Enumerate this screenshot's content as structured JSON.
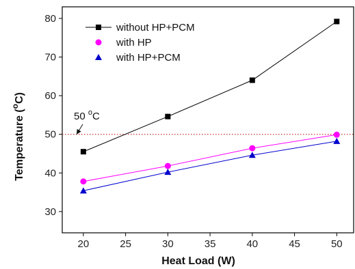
{
  "chart_data": {
    "type": "line",
    "xlabel": "Heat Load (W)",
    "ylabel_main": "Temperature (",
    "ylabel_sup": "o",
    "ylabel_end": "C)",
    "xlim": [
      17.5,
      52
    ],
    "ylim": [
      24.5,
      83
    ],
    "xticks": [
      20,
      25,
      30,
      35,
      40,
      45,
      50
    ],
    "yticks": [
      30,
      40,
      50,
      60,
      70,
      80
    ],
    "grid": false,
    "legend_position": "top-left",
    "series": [
      {
        "name": "without HP+PCM",
        "x": [
          20,
          30,
          40,
          50
        ],
        "y": [
          45.5,
          54.6,
          64.0,
          79.2
        ],
        "color": "#000000",
        "marker": "square"
      },
      {
        "name": "with HP",
        "x": [
          20,
          30,
          40,
          50
        ],
        "y": [
          37.8,
          41.8,
          46.4,
          49.9
        ],
        "color": "#ff00ff",
        "marker": "circle"
      },
      {
        "name": "with HP+PCM",
        "x": [
          20,
          30,
          40,
          50
        ],
        "y": [
          35.4,
          40.2,
          44.6,
          48.2
        ],
        "color": "#0000cc",
        "marker": "triangle"
      }
    ],
    "reference_line": {
      "y": 50,
      "color": "#c0392b",
      "style": "dotted"
    },
    "annotation": {
      "text": "50 ",
      "sup": "o",
      "end": "C",
      "x": 19.2,
      "y": 50
    }
  }
}
